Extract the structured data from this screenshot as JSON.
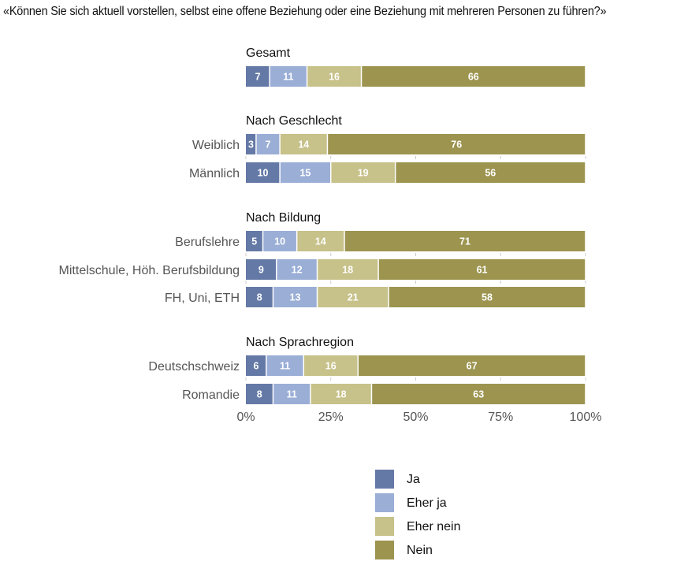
{
  "title": "«Können Sie sich aktuell vorstellen, selbst eine offene Beziehung oder eine Beziehung mit mehreren Personen zu führen?»",
  "chart_data": {
    "type": "bar",
    "orientation": "horizontal",
    "stacked": true,
    "title": "«Können Sie sich aktuell vorstellen, selbst eine offene Beziehung oder eine Beziehung mit mehreren Personen zu führen?»",
    "xlabel": "",
    "ylabel": "",
    "xlim": [
      0,
      100
    ],
    "x_ticks": [
      "0%",
      "25%",
      "50%",
      "75%",
      "100%"
    ],
    "x_tick_values": [
      0,
      25,
      50,
      75,
      100
    ],
    "grid": false,
    "legend_position": "bottom-center",
    "series": [
      {
        "name": "Ja",
        "color": "#6479a6"
      },
      {
        "name": "Eher ja",
        "color": "#9aaed6"
      },
      {
        "name": "Eher nein",
        "color": "#c7c18a"
      },
      {
        "name": "Nein",
        "color": "#9c944f"
      }
    ],
    "groups": [
      {
        "title": "Gesamt",
        "rows": [
          {
            "label": "",
            "values": [
              7,
              11,
              16,
              66
            ]
          }
        ]
      },
      {
        "title": "Nach Geschlecht",
        "rows": [
          {
            "label": "Weiblich",
            "values": [
              3,
              7,
              14,
              76
            ]
          },
          {
            "label": "Männlich",
            "values": [
              10,
              15,
              19,
              56
            ]
          }
        ]
      },
      {
        "title": "Nach Bildung",
        "rows": [
          {
            "label": "Berufslehre",
            "values": [
              5,
              10,
              14,
              71
            ]
          },
          {
            "label": "Mittelschule, Höh. Berufsbildung",
            "values": [
              9,
              12,
              18,
              61
            ]
          },
          {
            "label": "FH, Uni, ETH",
            "values": [
              8,
              13,
              21,
              58
            ]
          }
        ]
      },
      {
        "title": "Nach Sprachregion",
        "rows": [
          {
            "label": "Deutschschweiz",
            "values": [
              6,
              11,
              16,
              67
            ]
          },
          {
            "label": "Romandie",
            "values": [
              8,
              11,
              18,
              63
            ]
          }
        ]
      }
    ]
  }
}
